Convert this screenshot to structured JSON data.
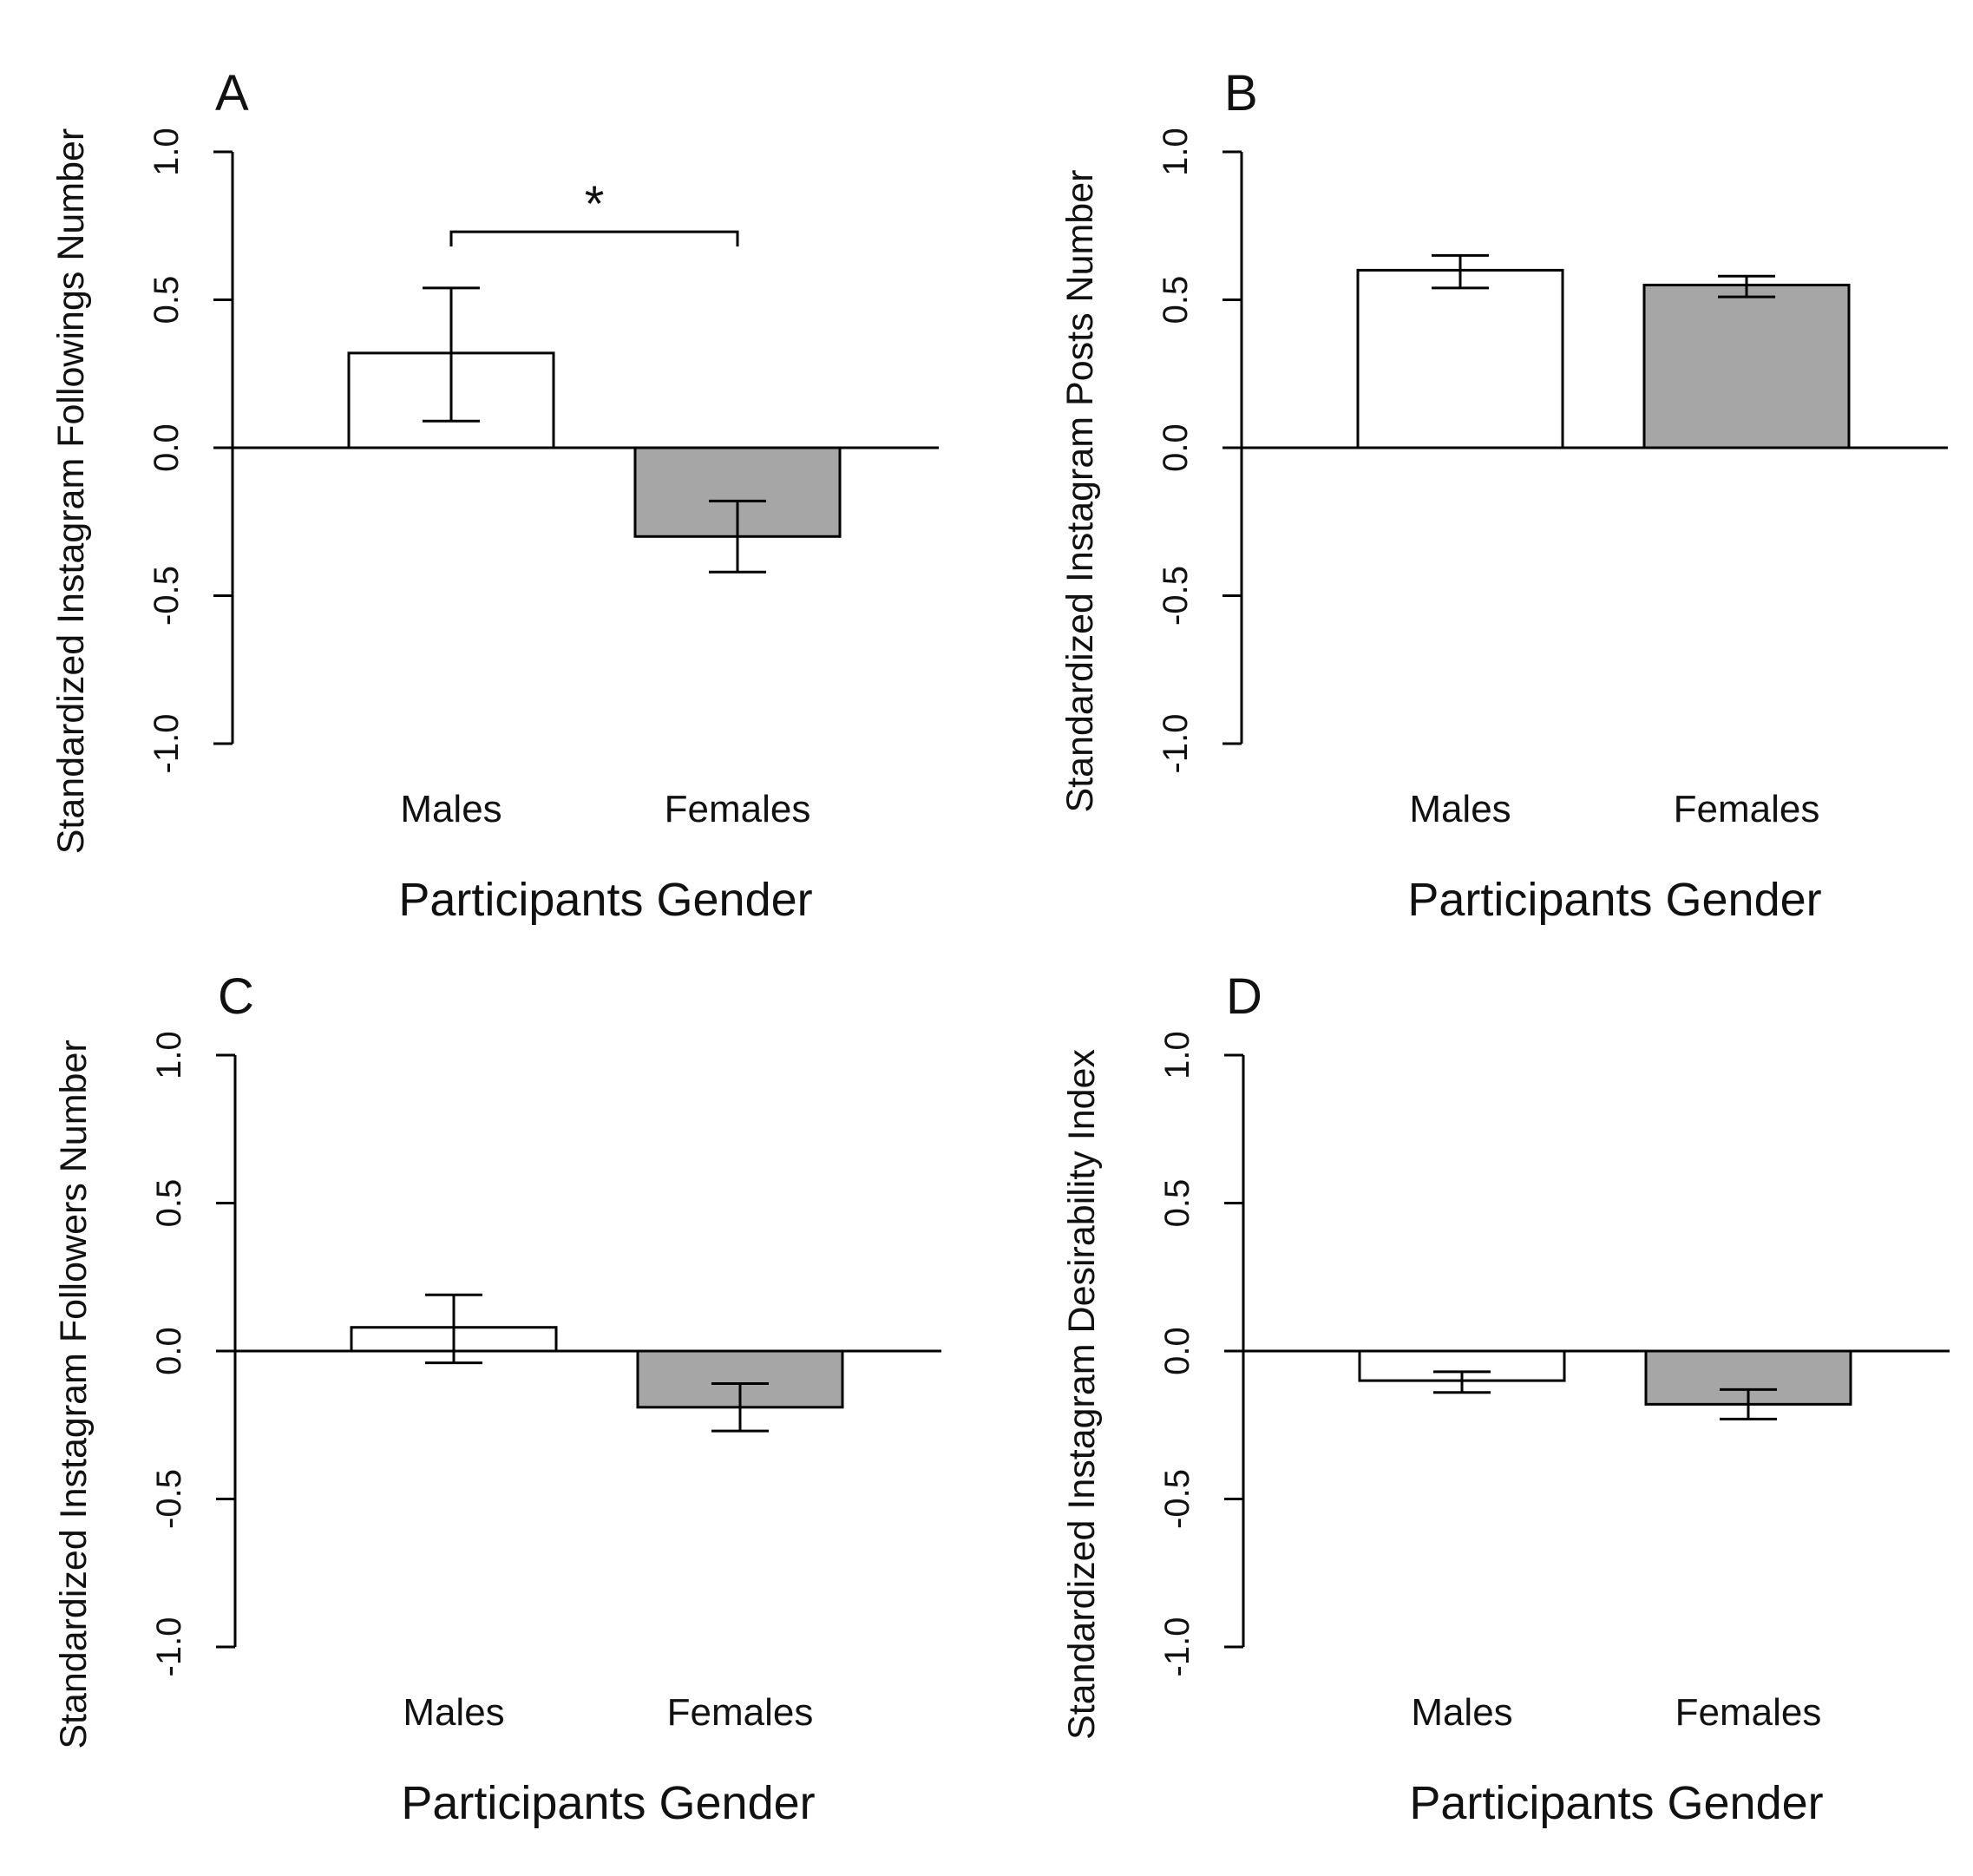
{
  "colors": {
    "male_bar": "#ffffff",
    "female_bar": "#a6a6a6",
    "stroke": "#000000"
  },
  "chart_data": [
    {
      "type": "bar",
      "panel": "A",
      "categories": [
        "Males",
        "Females"
      ],
      "values": [
        0.32,
        -0.3
      ],
      "error_low": [
        0.09,
        -0.42
      ],
      "error_high": [
        0.54,
        -0.18
      ],
      "xlabel": "Participants Gender",
      "ylabel": "Standardized Instagram Followings Number",
      "ylim": [
        -1.0,
        1.0
      ],
      "yticks": [
        -1.0,
        -0.5,
        0.0,
        0.5,
        1.0
      ],
      "ytick_labels": [
        "-1.0",
        "-0.5",
        "0.0",
        "0.5",
        "1.0"
      ],
      "significance": {
        "between": [
          "Males",
          "Females"
        ],
        "marker": "*",
        "level": 0.73
      }
    },
    {
      "type": "bar",
      "panel": "B",
      "categories": [
        "Males",
        "Females"
      ],
      "values": [
        0.6,
        0.55
      ],
      "error_low": [
        0.54,
        0.51
      ],
      "error_high": [
        0.65,
        0.58
      ],
      "xlabel": "Participants Gender",
      "ylabel": "Standardized Instagram Posts Number",
      "ylim": [
        -1.0,
        1.0
      ],
      "yticks": [
        -1.0,
        -0.5,
        0.0,
        0.5,
        1.0
      ],
      "ytick_labels": [
        "-1.0",
        "-0.5",
        "0.0",
        "0.5",
        "1.0"
      ]
    },
    {
      "type": "bar",
      "panel": "C",
      "categories": [
        "Males",
        "Females"
      ],
      "values": [
        0.08,
        -0.19
      ],
      "error_low": [
        -0.04,
        -0.27
      ],
      "error_high": [
        0.19,
        -0.11
      ],
      "xlabel": "Participants Gender",
      "ylabel": "Standardized Instagram Followers Number",
      "ylim": [
        -1.0,
        1.0
      ],
      "yticks": [
        -1.0,
        -0.5,
        0.0,
        0.5,
        1.0
      ],
      "ytick_labels": [
        "-1.0",
        "-0.5",
        "0.0",
        "0.5",
        "1.0"
      ]
    },
    {
      "type": "bar",
      "panel": "D",
      "categories": [
        "Males",
        "Females"
      ],
      "values": [
        -0.1,
        -0.18
      ],
      "error_low": [
        -0.14,
        -0.23
      ],
      "error_high": [
        -0.07,
        -0.13
      ],
      "xlabel": "Participants Gender",
      "ylabel": "Standardized Instagram Desirability Index",
      "ylim": [
        -1.0,
        1.0
      ],
      "yticks": [
        -1.0,
        -0.5,
        0.0,
        0.5,
        1.0
      ],
      "ytick_labels": [
        "-1.0",
        "-0.5",
        "0.0",
        "0.5",
        "1.0"
      ]
    }
  ]
}
